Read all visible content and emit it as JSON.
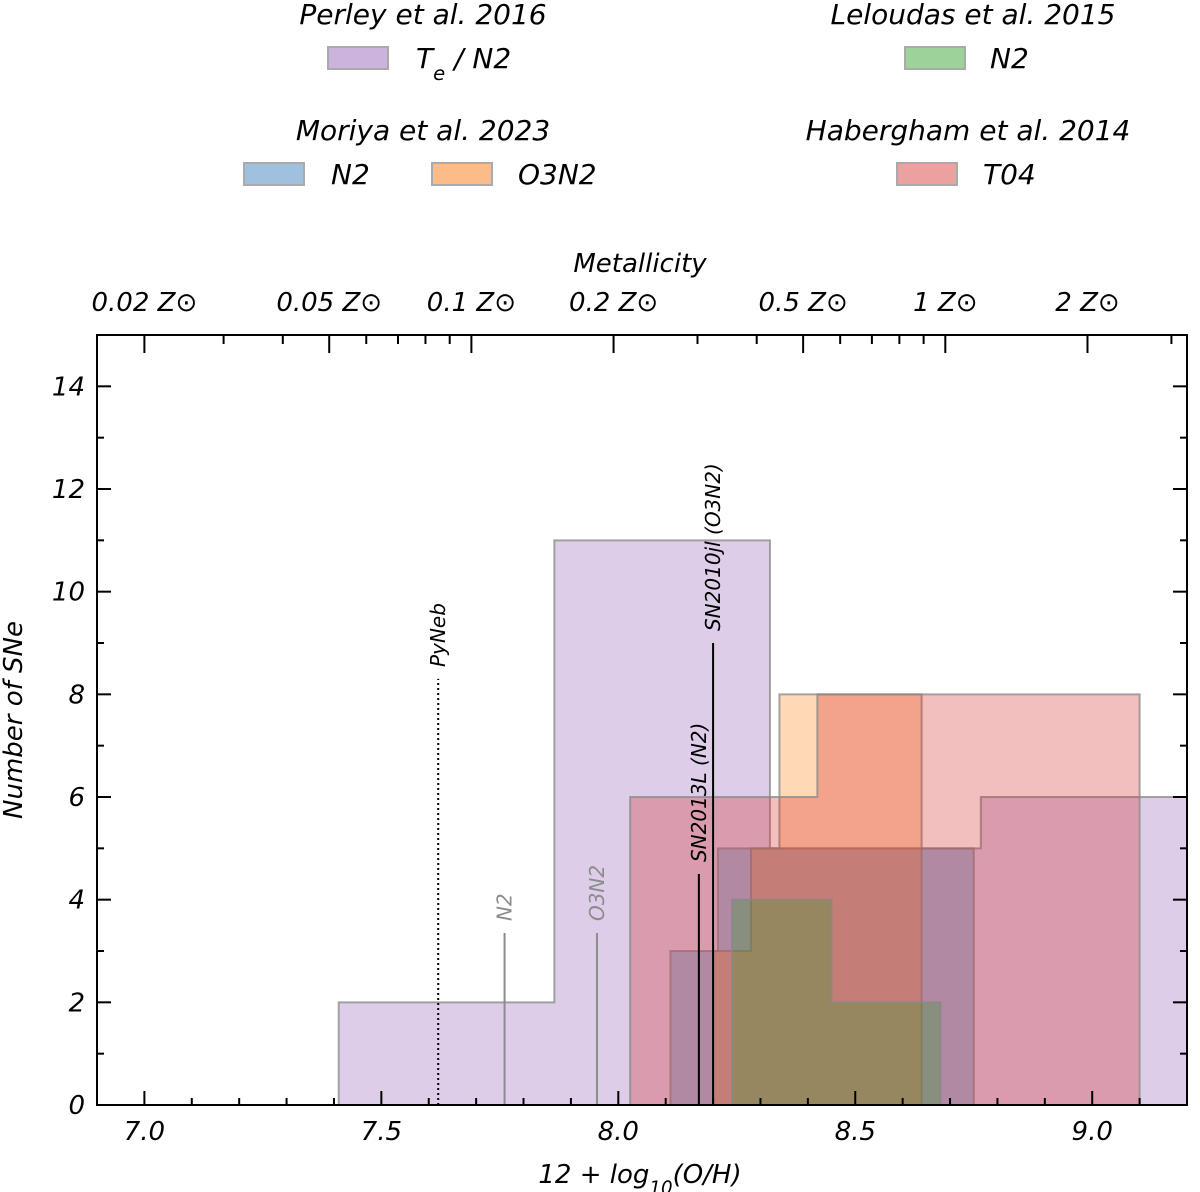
{
  "chart_data": {
    "type": "histogram",
    "xlabel": "12 + log",
    "xlabel_sub": "10",
    "xlabel_tail": "(O/H)",
    "ylabel": "Number of SNe",
    "xlim": [
      6.9,
      9.2
    ],
    "ylim": [
      0,
      15
    ],
    "x_ticks": [
      "7.0",
      "7.5",
      "8.0",
      "8.5",
      "9.0"
    ],
    "y_ticks": [
      "0",
      "2",
      "4",
      "6",
      "8",
      "10",
      "12",
      "14"
    ],
    "top_axis": {
      "label": "Metallicity",
      "ticks": [
        {
          "logoh": 7.0,
          "label": "0.02 Z"
        },
        {
          "logoh": 7.39,
          "label": "0.05 Z"
        },
        {
          "logoh": 7.69,
          "label": "0.1 Z"
        },
        {
          "logoh": 7.99,
          "label": "0.2 Z"
        },
        {
          "logoh": 8.39,
          "label": "0.5 Z"
        },
        {
          "logoh": 8.69,
          "label": "1 Z"
        },
        {
          "logoh": 8.99,
          "label": "2 Z"
        }
      ],
      "sun_symbol": "⊙"
    },
    "legend": [
      {
        "group": "Perley et al. 2016",
        "entries": [
          {
            "label": "T",
            "sub": "e",
            "tail": " / N2",
            "color": "#ccb3dd"
          }
        ]
      },
      {
        "group": "Leloudas et al. 2015",
        "entries": [
          {
            "label": "N2",
            "color": "#9ed29b"
          }
        ]
      },
      {
        "group": "Moriya et al. 2023",
        "entries": [
          {
            "label": "N2",
            "color": "#9fc1df"
          },
          {
            "label": "O3N2",
            "color": "#fcbc8a"
          }
        ]
      },
      {
        "group": "Habergham et al. 2014",
        "entries": [
          {
            "label": "T04",
            "color": "#eda0a0"
          }
        ]
      }
    ],
    "series": [
      {
        "name": "Perley et al. 2016 Te / N2",
        "color": "#c6acd8",
        "opacity": 0.6,
        "edges": [
          7.41,
          7.865,
          8.32,
          8.765,
          9.2
        ],
        "counts": [
          2,
          11,
          5,
          6
        ]
      },
      {
        "name": "Moriya et al. 2023 N2",
        "color": "#1f77b4",
        "opacity": 0.3,
        "edges": [
          8.11,
          8.17,
          8.21,
          8.26,
          8.43,
          8.6,
          8.75
        ],
        "counts": [
          3,
          3,
          5,
          5,
          5,
          5
        ]
      },
      {
        "name": "Moriya et al. 2023 O3N2",
        "color": "#ff7f0e",
        "opacity": 0.3,
        "edges": [
          8.2,
          8.28,
          8.34,
          8.38,
          8.6,
          8.64
        ],
        "counts": [
          3,
          5,
          8,
          8,
          8
        ]
      },
      {
        "name": "Habergham et al. 2014 T04",
        "color": "#d62728",
        "opacity": 0.3,
        "edges": [
          8.025,
          8.2,
          8.38,
          8.42,
          8.54,
          8.65,
          8.76,
          9.1
        ],
        "counts": [
          6,
          6,
          6,
          8,
          8,
          8,
          8
        ]
      },
      {
        "name": "Leloudas et al. 2015 N2",
        "color": "#2ca02c",
        "opacity": 0.3,
        "edges": [
          8.24,
          8.45,
          8.68
        ],
        "counts": [
          4,
          2
        ]
      }
    ],
    "markers": [
      {
        "x": 7.62,
        "top": 8.3,
        "label": "PyNeb",
        "style": "dotted",
        "color": "#000000"
      },
      {
        "x": 7.76,
        "top": 3.35,
        "label": "N2",
        "style": "solid",
        "color": "#8c8c8c"
      },
      {
        "x": 7.955,
        "top": 3.35,
        "label": "O3N2",
        "style": "solid",
        "color": "#8c8c8c"
      },
      {
        "x": 8.17,
        "top": 4.5,
        "label": "SN2013L (N2)",
        "style": "solid",
        "color": "#000000"
      },
      {
        "x": 8.2,
        "top": 9.0,
        "label": "SN2010jl (O3N2)",
        "style": "solid",
        "color": "#000000"
      }
    ]
  }
}
